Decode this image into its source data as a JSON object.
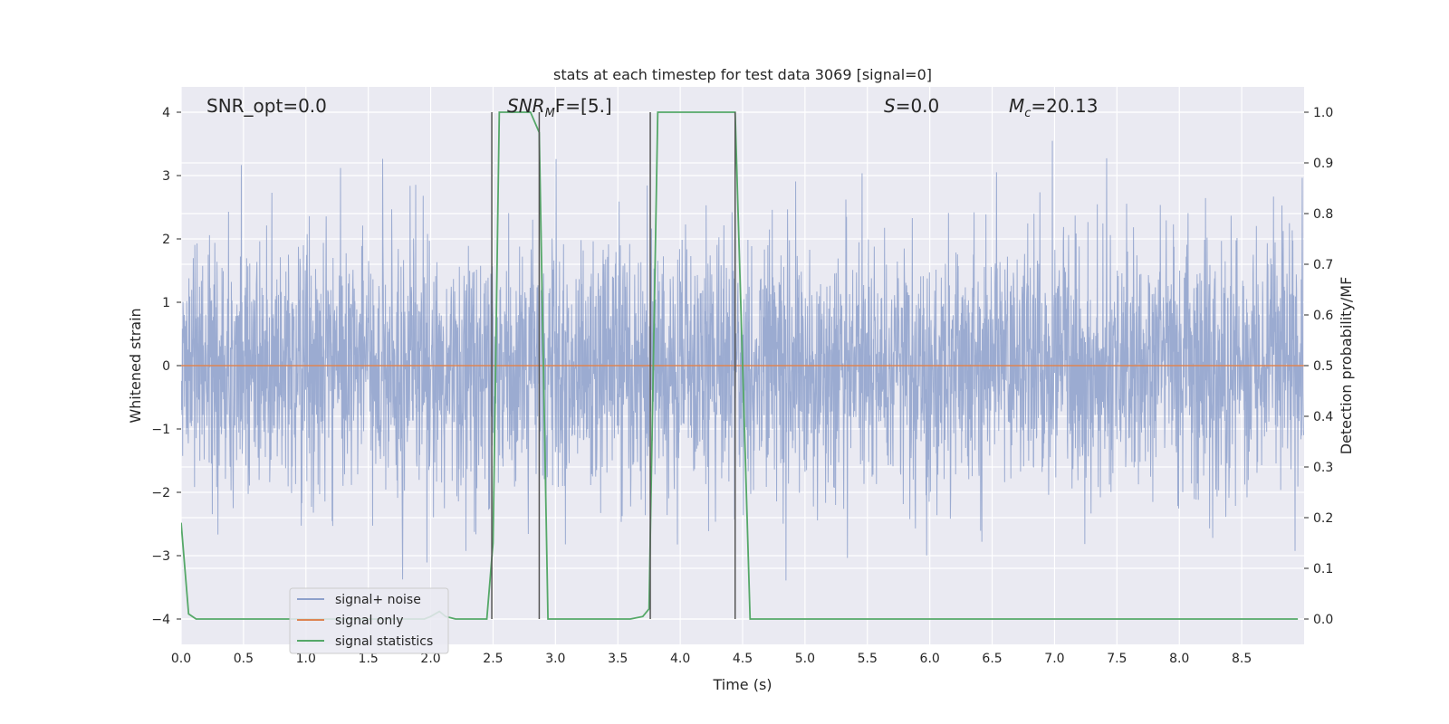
{
  "chart_data": {
    "type": "line",
    "title": "stats at each timestep for test data 3069 [signal=0]",
    "xlabel": "Time (s)",
    "ylabel": "Whitened strain",
    "y2label": "Detection probability/MF",
    "xlim": [
      0,
      9
    ],
    "ylim": [
      -4.4,
      4.4
    ],
    "y2lim": [
      -0.05,
      1.05
    ],
    "x_ticks": [
      "0.0",
      "0.5",
      "1.0",
      "1.5",
      "2.0",
      "2.5",
      "3.0",
      "3.5",
      "4.0",
      "4.5",
      "5.0",
      "5.5",
      "6.0",
      "6.5",
      "7.0",
      "7.5",
      "8.0",
      "8.5"
    ],
    "y_ticks": [
      "4",
      "3",
      "2",
      "1",
      "0",
      "−1",
      "−2",
      "−3",
      "−4"
    ],
    "y2_ticks": [
      "1.0",
      "0.9",
      "0.8",
      "0.7",
      "0.6",
      "0.5",
      "0.4",
      "0.3",
      "0.2",
      "0.1",
      "0.0"
    ],
    "grid": true,
    "legend_position": "lower-left",
    "annotations": {
      "snr_opt": "SNR_opt=0.0",
      "snr_mf_main": "SNR",
      "snr_mf_sub": "M",
      "snr_mf_rest": "F=[5.]",
      "s_main": "S",
      "s_rest": "=0.0",
      "mc_main": "M",
      "mc_sub": "c",
      "mc_rest": "=20.13"
    },
    "series": [
      {
        "name": "signal+ noise",
        "color": "#8da0cb",
        "kind": "noise",
        "sample_rate": 400,
        "duration": 9,
        "sigma": 1.0
      },
      {
        "name": "signal only",
        "color": "#dd8452",
        "x": [
          0,
          9
        ],
        "y": [
          0,
          0
        ]
      },
      {
        "name": "signal statistics",
        "color": "#55a868",
        "axis": "right",
        "x": [
          0,
          0.06,
          0.12,
          0.5,
          1.0,
          1.5,
          1.95,
          2.0,
          2.07,
          2.12,
          2.2,
          2.45,
          2.5,
          2.55,
          2.62,
          2.8,
          2.87,
          2.94,
          3.1,
          3.6,
          3.7,
          3.75,
          3.82,
          4.3,
          4.44,
          4.56,
          4.6,
          5.0,
          6.0,
          7.0,
          8.0,
          8.95
        ],
        "y": [
          0.19,
          0.01,
          0.0,
          0.0,
          0.0,
          0.0,
          0.0,
          0.005,
          0.015,
          0.005,
          0.0,
          0.0,
          0.15,
          1.0,
          1.0,
          1.0,
          0.96,
          0.0,
          0.0,
          0.0,
          0.005,
          0.02,
          1.0,
          1.0,
          1.0,
          0.0,
          0.0,
          0.0,
          0.0,
          0.0,
          0.0,
          0.0
        ]
      }
    ],
    "vertical_markers": [
      {
        "x": 2.49,
        "y_top": 4.0
      },
      {
        "x": 2.87,
        "y_top": 4.0
      },
      {
        "x": 3.76,
        "y_top": 4.0
      },
      {
        "x": 4.44,
        "y_top": 4.0
      }
    ]
  }
}
